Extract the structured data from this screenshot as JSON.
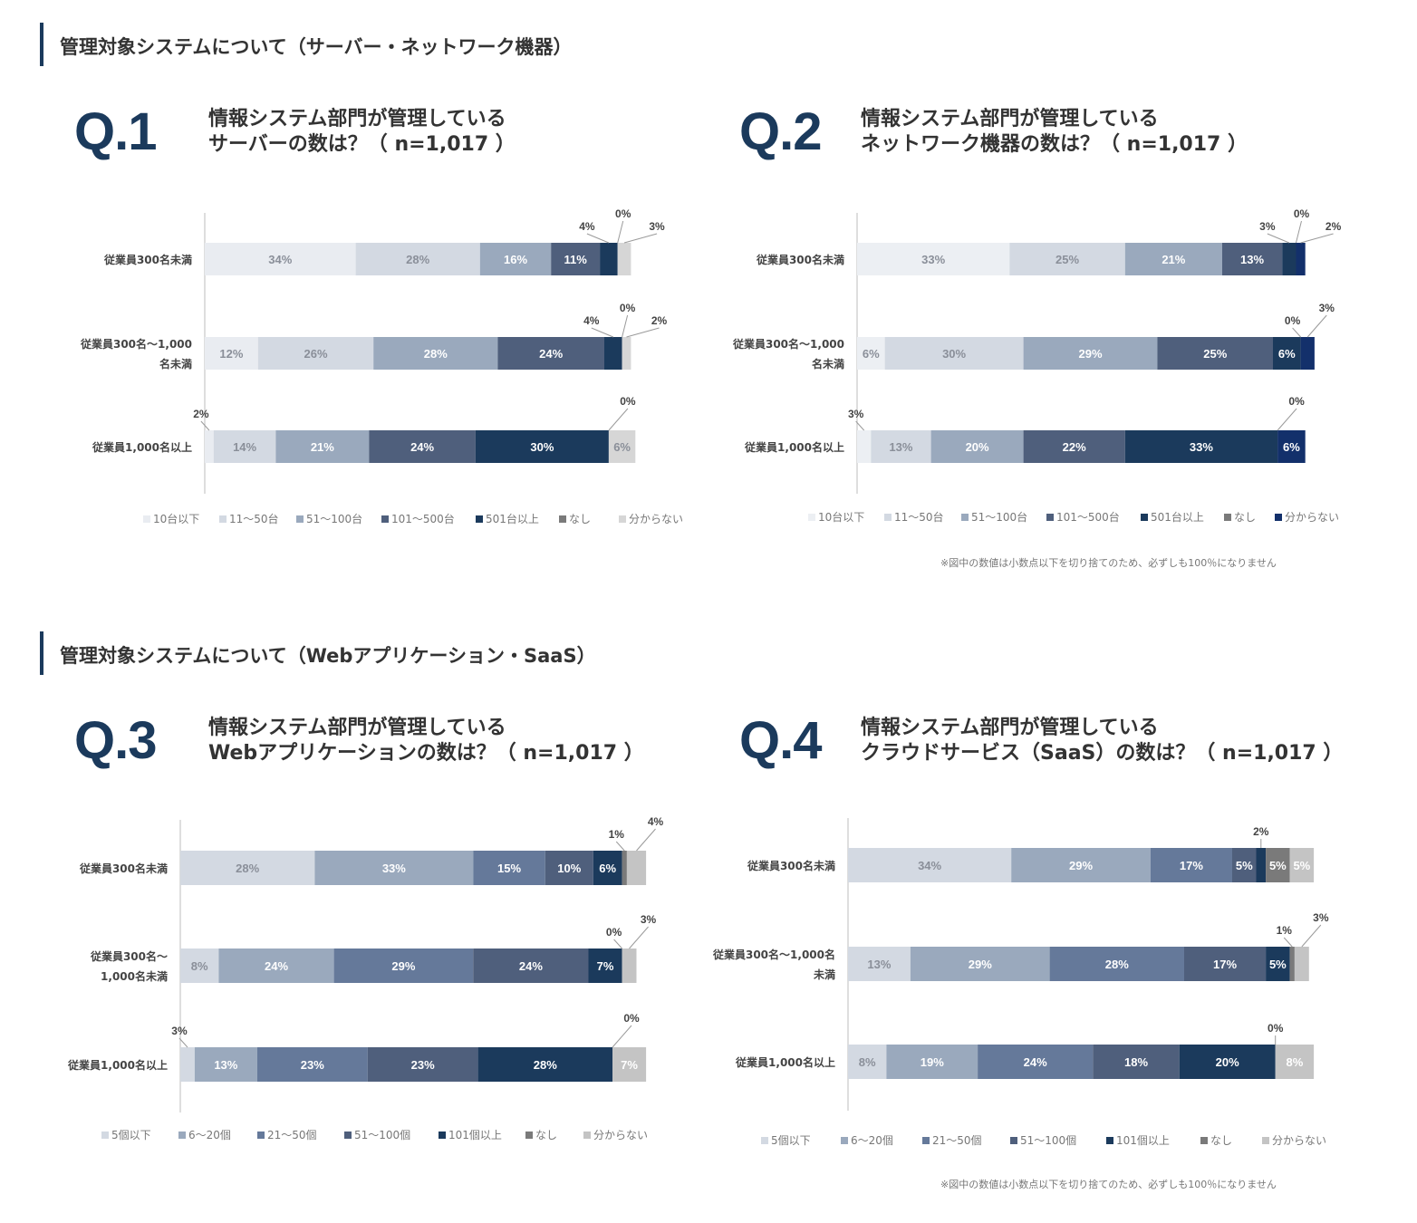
{
  "sections": [
    {
      "title": "管理対象システムについて（サーバー・ネットワーク機器）"
    },
    {
      "title": "管理対象システムについて（Webアプリケーション・SaaS）"
    }
  ],
  "questions": [
    {
      "num": "Q.1",
      "line1": "情報システム部門が管理している",
      "line2": "サーバーの数は？（ n=1,017 ）"
    },
    {
      "num": "Q.2",
      "line1": "情報システム部門が管理している",
      "line2": "ネットワーク機器の数は？（ n=1,017 ）"
    },
    {
      "num": "Q.3",
      "line1": "情報システム部門が管理している",
      "line2": "Webアプリケーションの数は？（ n=1,017 ）"
    },
    {
      "num": "Q.4",
      "line1": "情報システム部門が管理している",
      "line2": "クラウドサービス（SaaS）の数は？（ n=1,017 ）"
    }
  ],
  "notes": [
    "※図中の数値は小数点以下を切り捨てのため、必ずしも100％になりません",
    "※図中の数値は小数点以下を切り捨てのため、必ずしも100％になりません"
  ],
  "chart_data": [
    {
      "type": "bar",
      "stacked": true,
      "orientation": "horizontal",
      "categories": [
        [
          "従業員300名未満"
        ],
        [
          "従業員300名～1,000",
          "名未満"
        ],
        [
          "従業員1,000名以上"
        ]
      ],
      "legend_position": "bottom",
      "series": [
        {
          "name": "10台以下",
          "color": "#e9ecf1",
          "values": [
            34,
            12,
            2
          ],
          "labels": [
            "34%",
            "12%",
            "2%"
          ]
        },
        {
          "name": "11～50台",
          "color": "#d3d9e2",
          "values": [
            28,
            26,
            14
          ],
          "labels": [
            "28%",
            "26%",
            "14%"
          ]
        },
        {
          "name": "51～100台",
          "color": "#9aa9bd",
          "values": [
            16,
            28,
            21
          ],
          "labels": [
            "16%",
            "28%",
            "21%"
          ]
        },
        {
          "name": "101～500台",
          "color": "#4f5f7c",
          "values": [
            11,
            24,
            24
          ],
          "labels": [
            "11%",
            "24%",
            "24%"
          ]
        },
        {
          "name": "501台以上",
          "color": "#1b3a5c",
          "values": [
            4,
            4,
            30
          ],
          "labels": [
            "4%",
            "4%",
            "30%"
          ]
        },
        {
          "name": "なし",
          "color": "#7a7a7a",
          "values": [
            0,
            0,
            0
          ],
          "labels": [
            "0%",
            "0%",
            "0%"
          ]
        },
        {
          "name": "分からない",
          "color": "#d6d6d6",
          "values": [
            3,
            2,
            6
          ],
          "labels": [
            "3%",
            "2%",
            "6%"
          ]
        }
      ]
    },
    {
      "type": "bar",
      "stacked": true,
      "orientation": "horizontal",
      "categories": [
        [
          "従業員300名未満"
        ],
        [
          "従業員300名～1,000",
          "名未満"
        ],
        [
          "従業員1,000名以上"
        ]
      ],
      "legend_position": "bottom",
      "series": [
        {
          "name": "10台以下",
          "color": "#eceff3",
          "values": [
            33,
            6,
            3
          ],
          "labels": [
            "33%",
            "6%",
            "3%"
          ]
        },
        {
          "name": "11～50台",
          "color": "#d3d9e2",
          "values": [
            25,
            30,
            13
          ],
          "labels": [
            "25%",
            "30%",
            "13%"
          ]
        },
        {
          "name": "51～100台",
          "color": "#9aa9bd",
          "values": [
            21,
            29,
            20
          ],
          "labels": [
            "21%",
            "29%",
            "20%"
          ]
        },
        {
          "name": "101～500台",
          "color": "#4f5f7c",
          "values": [
            13,
            25,
            22
          ],
          "labels": [
            "13%",
            "25%",
            "22%"
          ]
        },
        {
          "name": "501台以上",
          "color": "#1b3a5c",
          "values": [
            3,
            6,
            33
          ],
          "labels": [
            "3%",
            "6%",
            "33%"
          ]
        },
        {
          "name": "なし",
          "color": "#7a7a7a",
          "values": [
            0,
            0,
            0
          ],
          "labels": [
            "0%",
            "0%",
            "0%"
          ]
        },
        {
          "name": "分からない",
          "color": "#13306b",
          "values": [
            2,
            3,
            6
          ],
          "labels": [
            "2%",
            "3%",
            "6%"
          ]
        }
      ]
    },
    {
      "type": "bar",
      "stacked": true,
      "orientation": "horizontal",
      "categories": [
        [
          "従業員300名未満"
        ],
        [
          "従業員300名～",
          "1,000名未満"
        ],
        [
          "従業員1,000名以上"
        ]
      ],
      "legend_position": "bottom",
      "series": [
        {
          "name": "5個以下",
          "color": "#d3d9e2",
          "values": [
            28,
            8,
            3
          ],
          "labels": [
            "28%",
            "8%",
            "3%"
          ]
        },
        {
          "name": "6～20個",
          "color": "#9aa9bd",
          "values": [
            33,
            24,
            13
          ],
          "labels": [
            "33%",
            "24%",
            "13%"
          ]
        },
        {
          "name": "21～50個",
          "color": "#65799a",
          "values": [
            15,
            29,
            23
          ],
          "labels": [
            "15%",
            "29%",
            "23%"
          ]
        },
        {
          "name": "51～100個",
          "color": "#4f5f7c",
          "values": [
            10,
            24,
            23
          ],
          "labels": [
            "10%",
            "24%",
            "23%"
          ]
        },
        {
          "name": "101個以上",
          "color": "#1b3a5c",
          "values": [
            6,
            7,
            28
          ],
          "labels": [
            "6%",
            "7%",
            "28%"
          ]
        },
        {
          "name": "なし",
          "color": "#7a7a7a",
          "values": [
            1,
            0,
            0
          ],
          "labels": [
            "1%",
            "0%",
            "0%"
          ]
        },
        {
          "name": "分からない",
          "color": "#c4c4c4",
          "values": [
            4,
            3,
            7
          ],
          "labels": [
            "4%",
            "3%",
            "7%"
          ]
        }
      ]
    },
    {
      "type": "bar",
      "stacked": true,
      "orientation": "horizontal",
      "categories": [
        [
          "従業員300名未満"
        ],
        [
          "従業員300名～1,000名",
          "未満"
        ],
        [
          "従業員1,000名以上"
        ]
      ],
      "legend_position": "bottom",
      "series": [
        {
          "name": "5個以下",
          "color": "#d3d9e2",
          "values": [
            34,
            13,
            8
          ],
          "labels": [
            "34%",
            "13%",
            "8%"
          ]
        },
        {
          "name": "6～20個",
          "color": "#9aa9bd",
          "values": [
            29,
            29,
            19
          ],
          "labels": [
            "29%",
            "29%",
            "19%"
          ]
        },
        {
          "name": "21～50個",
          "color": "#65799a",
          "values": [
            17,
            28,
            24
          ],
          "labels": [
            "17%",
            "28%",
            "24%"
          ]
        },
        {
          "name": "51～100個",
          "color": "#4f5f7c",
          "values": [
            5,
            17,
            18
          ],
          "labels": [
            "5%",
            "17%",
            "18%"
          ]
        },
        {
          "name": "101個以上",
          "color": "#1b3a5c",
          "values": [
            2,
            5,
            20
          ],
          "labels": [
            "2%",
            "5%",
            "20%"
          ]
        },
        {
          "name": "なし",
          "color": "#7a7a7a",
          "values": [
            5,
            1,
            0
          ],
          "labels": [
            "5%",
            "1%",
            "0%"
          ]
        },
        {
          "name": "分からない",
          "color": "#c4c4c4",
          "values": [
            5,
            3,
            8
          ],
          "labels": [
            "5%",
            "3%",
            "8%"
          ]
        }
      ]
    }
  ]
}
